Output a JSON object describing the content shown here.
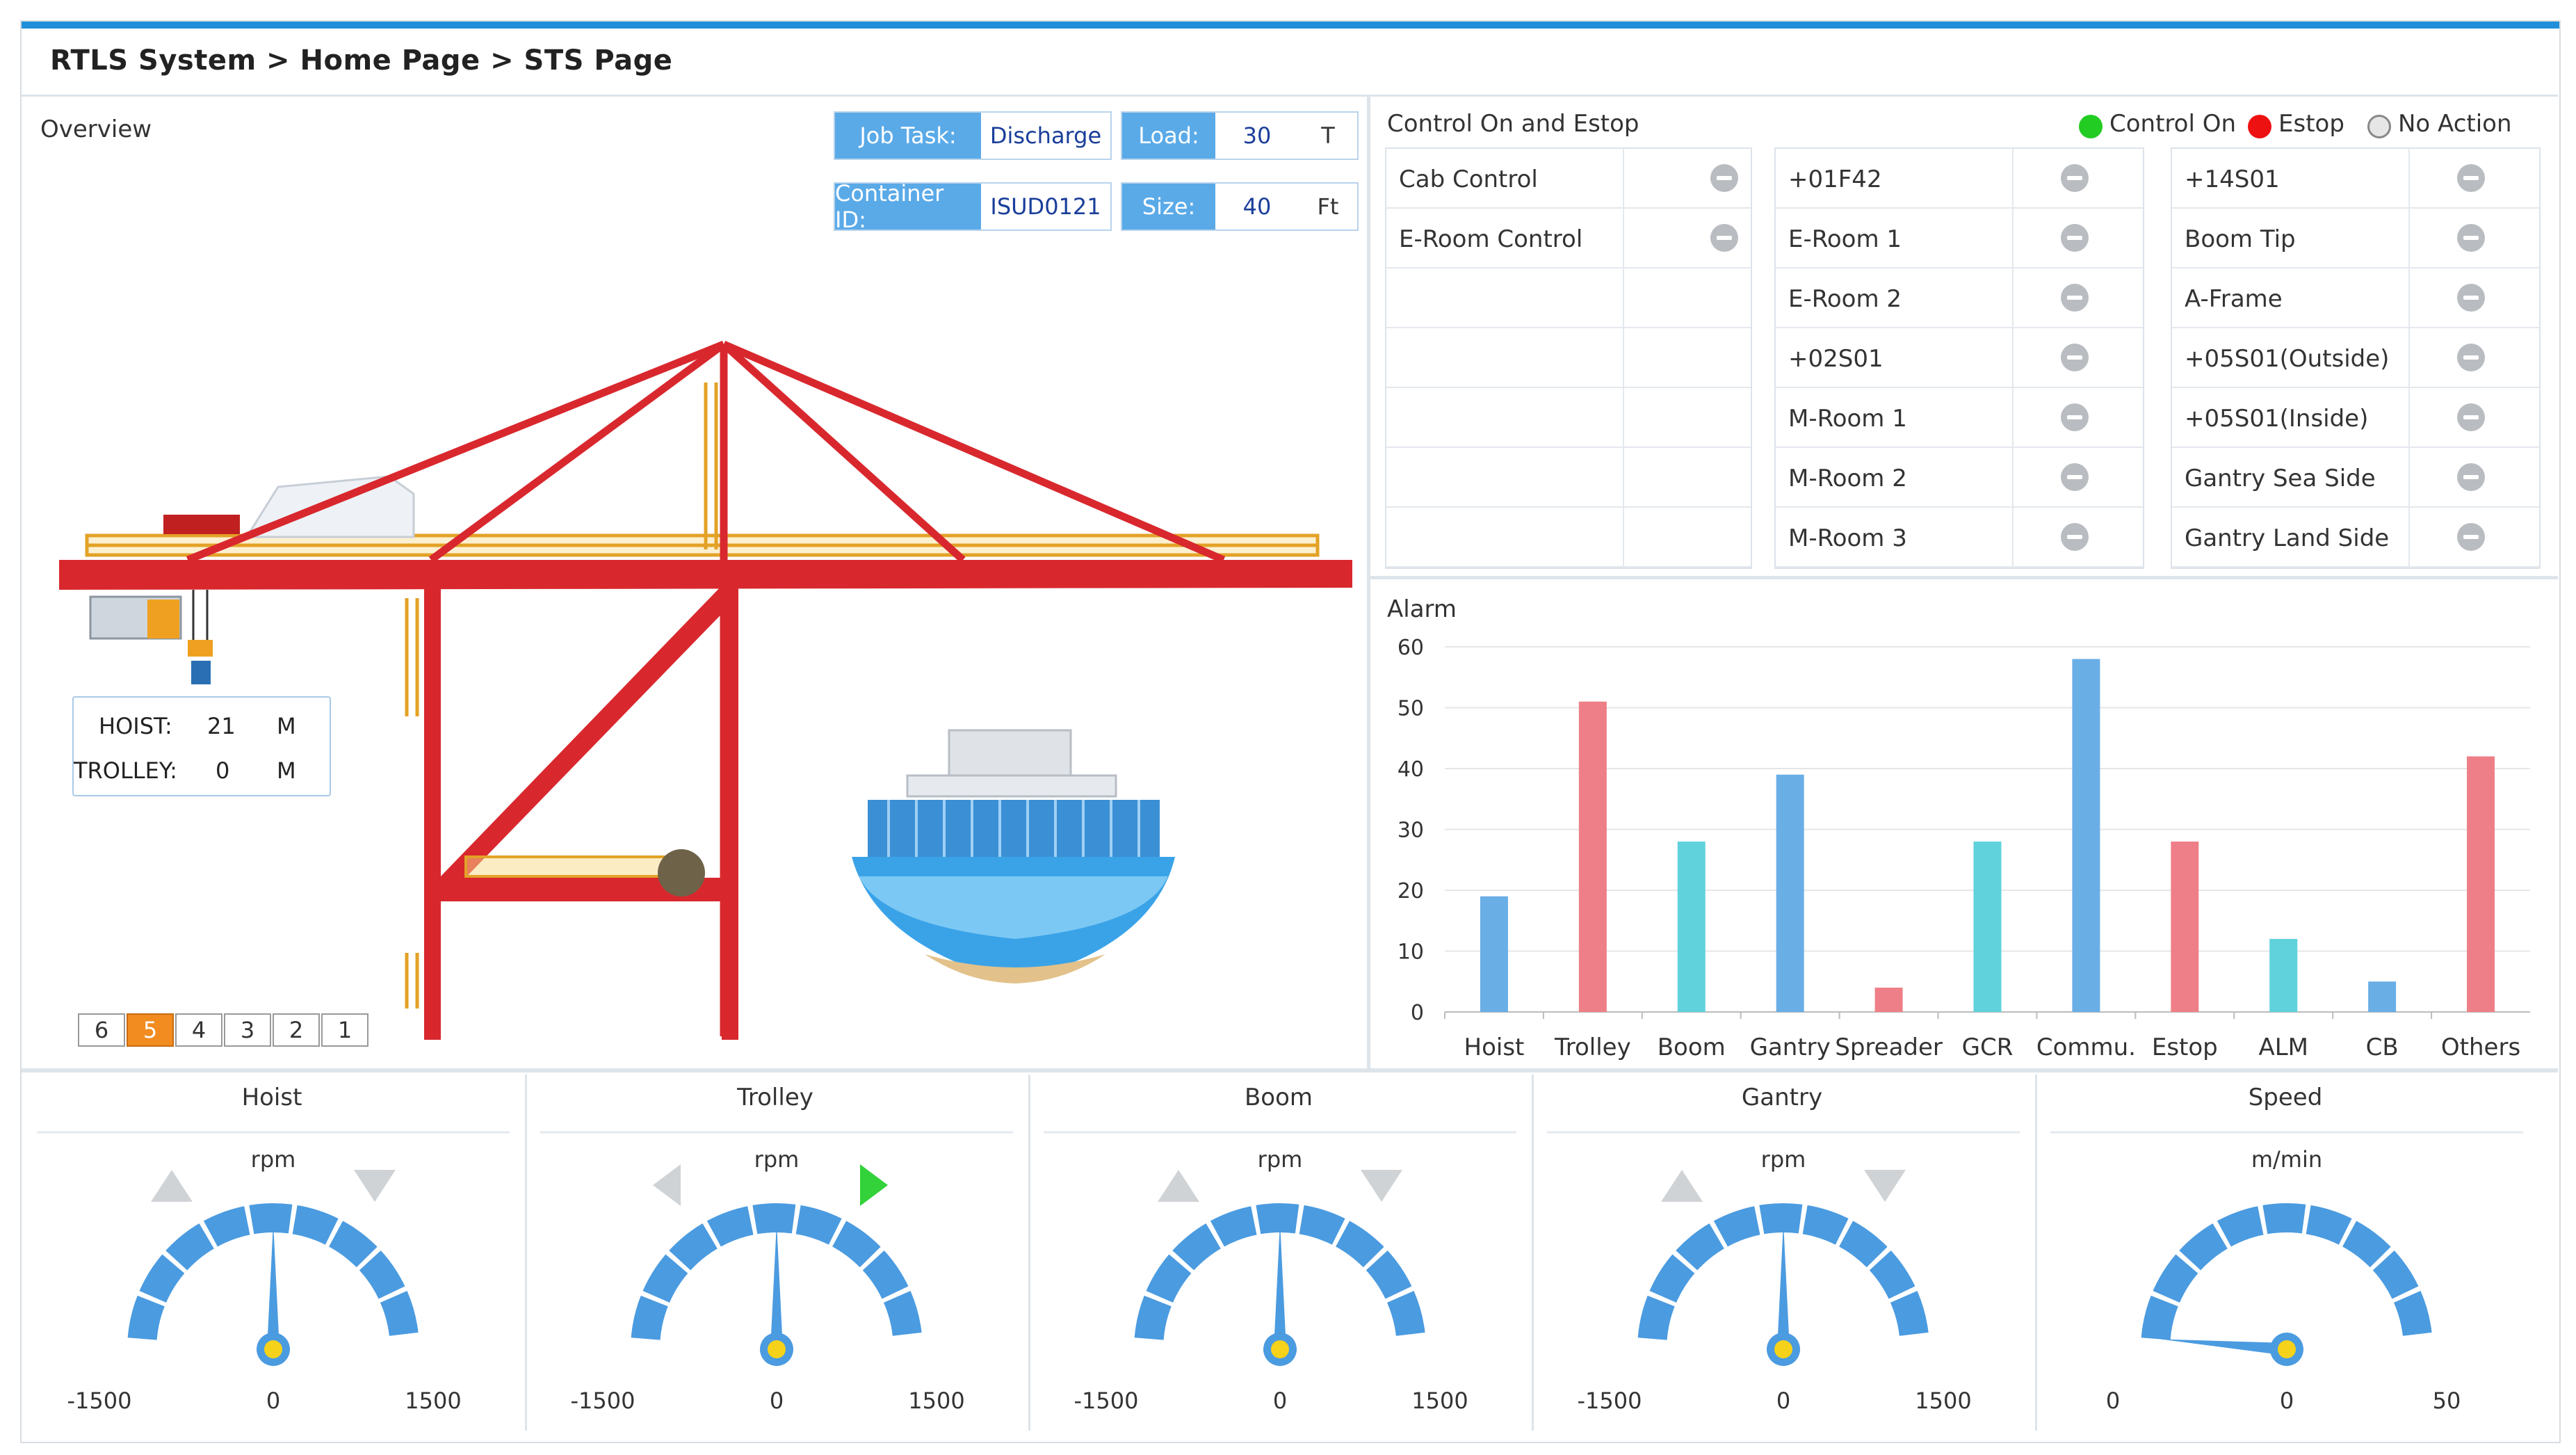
{
  "breadcrumb": "RTLS System > Home Page > STS Page",
  "overview": {
    "title": "Overview",
    "job_task_label": "Job Task:",
    "job_task_value": "Discharge",
    "load_label": "Load:",
    "load_value": "30",
    "load_unit": "T",
    "container_label": "Container ID:",
    "container_value": "ISUD0121",
    "size_label": "Size:",
    "size_value": "40",
    "size_unit": "Ft",
    "hoist_label": "HOIST:",
    "hoist_value": "21",
    "hoist_unit": "M",
    "trolley_label": "TROLLEY:",
    "trolley_value": "0",
    "trolley_unit": "M",
    "pager": [
      "6",
      "5",
      "4",
      "3",
      "2",
      "1"
    ],
    "pager_active": "5"
  },
  "control": {
    "title": "Control On and Estop",
    "legend": [
      {
        "label": "Control On",
        "color": "#22cc22"
      },
      {
        "label": "Estop",
        "color": "#ee1111"
      },
      {
        "label": "No Action",
        "color": "#e6e6e6"
      }
    ],
    "col1": [
      "Cab Control",
      "E-Room Control",
      "",
      "",
      "",
      "",
      ""
    ],
    "col2": [
      "+01F42",
      "E-Room 1",
      "E-Room 2",
      "+02S01",
      "M-Room 1",
      "M-Room 2",
      "M-Room 3"
    ],
    "col3": [
      "+14S01",
      "Boom Tip",
      "A-Frame",
      "+05S01(Outside)",
      "+05S01(Inside)",
      "Gantry Sea Side",
      "Gantry Land Side"
    ]
  },
  "alarm": {
    "title": "Alarm"
  },
  "chart_data": {
    "type": "bar",
    "title": "Alarm",
    "categories": [
      "Hoist",
      "Trolley",
      "Boom",
      "Gantry",
      "Spreader",
      "GCR",
      "Commu.",
      "Estop",
      "ALM",
      "CB",
      "Others"
    ],
    "values": [
      19,
      51,
      28,
      39,
      4,
      28,
      58,
      28,
      12,
      5,
      42
    ],
    "colors": [
      "#6aaee6",
      "#ee7f88",
      "#5fd2dc",
      "#6aaee6",
      "#ee7f88",
      "#5fd2dc",
      "#6aaee6",
      "#ee7f88",
      "#5fd2dc",
      "#6aaee6",
      "#ee7f88"
    ],
    "ylim": [
      0,
      60
    ],
    "yticks": [
      0,
      10,
      20,
      30,
      40,
      50,
      60
    ],
    "grid": true
  },
  "gauges": [
    {
      "title": "Hoist",
      "unit": "rpm",
      "min": "-1500",
      "mid": "0",
      "max": "1500",
      "value": 0,
      "min_num": -1500,
      "max_num": 1500,
      "arrows": "updown",
      "active_arrow": ""
    },
    {
      "title": "Trolley",
      "unit": "rpm",
      "min": "-1500",
      "mid": "0",
      "max": "1500",
      "value": 0,
      "min_num": -1500,
      "max_num": 1500,
      "arrows": "leftright",
      "active_arrow": "right"
    },
    {
      "title": "Boom",
      "unit": "rpm",
      "min": "-1500",
      "mid": "0",
      "max": "1500",
      "value": 0,
      "min_num": -1500,
      "max_num": 1500,
      "arrows": "updown",
      "active_arrow": ""
    },
    {
      "title": "Gantry",
      "unit": "rpm",
      "min": "-1500",
      "mid": "0",
      "max": "1500",
      "value": 0,
      "min_num": -1500,
      "max_num": 1500,
      "arrows": "updown",
      "active_arrow": ""
    },
    {
      "title": "Speed",
      "unit": "m/min",
      "min": "0",
      "mid": "0",
      "max": "50",
      "value": 0,
      "min_num": 0,
      "max_num": 50,
      "arrows": "none",
      "active_arrow": ""
    }
  ]
}
